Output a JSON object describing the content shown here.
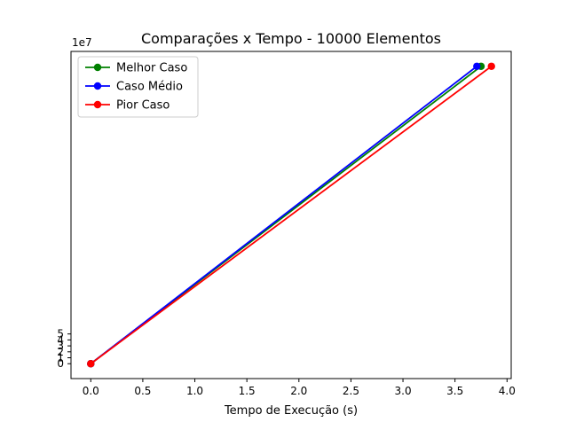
{
  "chart_data": {
    "type": "line",
    "title": "Comparações x Tempo - 10000 Elementos",
    "xlabel": "Tempo de Execução (s)",
    "ylabel": "",
    "y_offset_label": "1e7",
    "xlim": [
      -0.19,
      4.04
    ],
    "ylim": [
      -2.5,
      52.5
    ],
    "xticks": [
      0.0,
      0.5,
      1.0,
      1.5,
      2.0,
      2.5,
      3.0,
      3.5,
      4.0
    ],
    "xtick_labels": [
      "0.0",
      "0.5",
      "1.0",
      "1.5",
      "2.0",
      "2.5",
      "3.0",
      "3.5",
      "4.0"
    ],
    "yticks": [
      0,
      1,
      2,
      3,
      4,
      5
    ],
    "ytick_labels": [
      "0",
      "1",
      "2",
      "3",
      "4",
      "5"
    ],
    "grid": false,
    "legend_position": "upper-left",
    "series": [
      {
        "name": "Melhor Caso",
        "color": "#008000",
        "x": [
          0.0,
          3.75
        ],
        "y": [
          0,
          50
        ]
      },
      {
        "name": "Caso Médio",
        "color": "#0000ff",
        "x": [
          0.0,
          3.71
        ],
        "y": [
          0,
          50
        ]
      },
      {
        "name": "Pior Caso",
        "color": "#ff0000",
        "x": [
          0.0,
          3.85
        ],
        "y": [
          0,
          50
        ]
      }
    ]
  }
}
